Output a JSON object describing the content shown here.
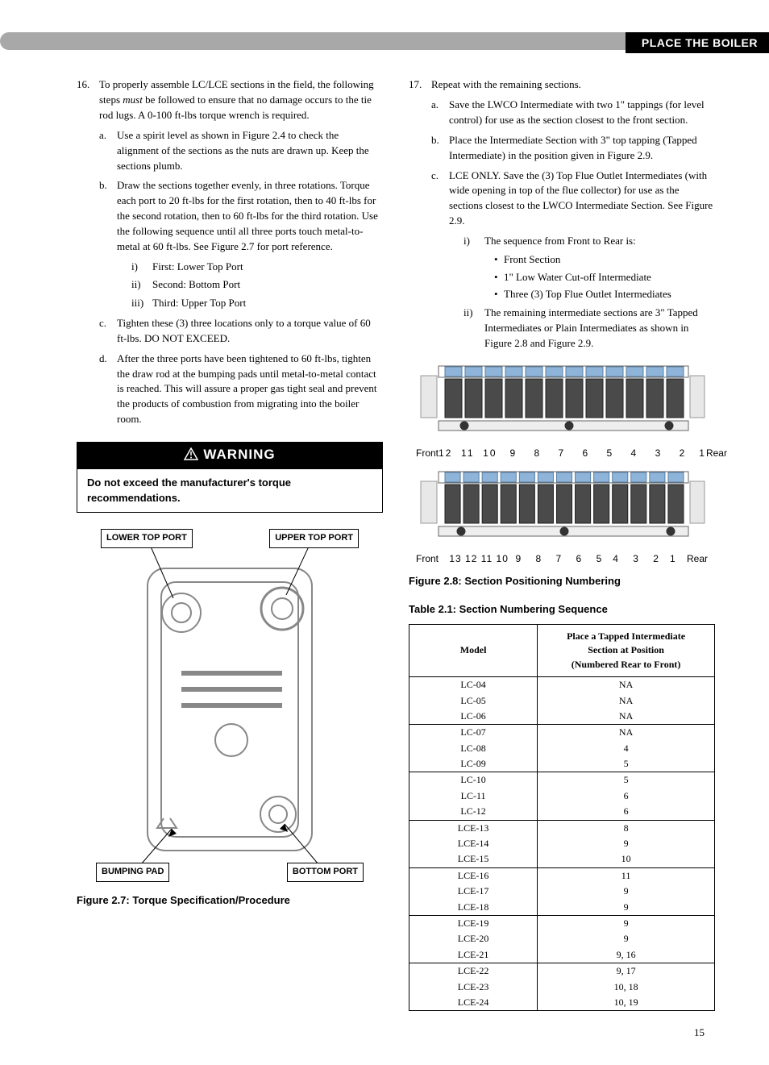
{
  "header": {
    "title": "PLACE THE BOILER"
  },
  "left": {
    "step16_num": "16.",
    "step16_text_a": "To properly assemble LC/LCE sections in the field, the following steps ",
    "step16_text_em": "must",
    "step16_text_b": " be followed to ensure that no damage occurs to the tie rod lugs. A 0-100 ft-lbs torque wrench is required.",
    "a_num": "a.",
    "a_text": "Use a spirit level as shown in Figure 2.4 to check the alignment of the sections as the nuts are drawn up. Keep the sections plumb.",
    "b_num": "b.",
    "b_text": "Draw the sections together evenly, in three rotations. Torque each port to 20 ft-lbs for the first rotation, then to 40 ft-lbs for the second rotation, then to 60 ft-lbs for the third rotation. Use the following sequence until all three ports touch metal-to-metal at 60 ft-lbs. See Figure 2.7 for port reference.",
    "b_i_num": "i)",
    "b_i": "First: Lower Top Port",
    "b_ii_num": "ii)",
    "b_ii": "Second: Bottom Port",
    "b_iii_num": "iii)",
    "b_iii": "Third: Upper Top Port",
    "c_num": "c.",
    "c_text": "Tighten these (3) three locations only to a torque value of 60 ft-lbs. DO NOT EXCEED.",
    "d_num": "d.",
    "d_text": "After the three ports have been tightened to 60 ft-lbs, tighten the draw rod at the bumping pads until metal-to-metal contact is reached. This will assure a proper gas tight seal and prevent the products of combustion from migrating into the boiler room.",
    "warning_title": "WARNING",
    "warning_body": "Do not exceed the manufacturer's torque recommendations.",
    "fig27": {
      "labels": {
        "lower_top": "LOWER TOP PORT",
        "upper_top": "UPPER TOP PORT",
        "bumping_pad": "BUMPING PAD",
        "bottom_port": "BOTTOM PORT"
      },
      "caption": "Figure 2.7: Torque Specification/Procedure"
    }
  },
  "right": {
    "step17_num": "17.",
    "step17_text": "Repeat with the remaining sections.",
    "a_num": "a.",
    "a_text": "Save the LWCO Intermediate with two 1\" tappings (for level control) for use as the section closest to the front section.",
    "b_num": "b.",
    "b_text": "Place the Intermediate Section with 3\" top tapping (Tapped Intermediate) in the position given in Figure 2.9.",
    "c_num": "c.",
    "c_text": "LCE ONLY. Save the (3) Top Flue Outlet Intermediates (with wide opening in top of the flue collector) for use as the sections closest to the LWCO Intermediate Section. See Figure 2.9.",
    "c_i_num": "i)",
    "c_i": "The sequence from Front to Rear is:",
    "c_i_b1": "Front Section",
    "c_i_b2": "1\" Low Water Cut-off Intermediate",
    "c_i_b3": "Three (3) Top Flue Outlet Intermediates",
    "c_ii_num": "ii)",
    "c_ii": "The remaining intermediate sections are 3\" Tapped Intermediates or Plain Intermediates as shown in Figure 2.8 and Figure 2.9.",
    "fig28": {
      "caption": "Figure 2.8: Section Positioning Numbering",
      "row1_front": "Front",
      "row1_rear": "Rear",
      "row1_nums": "12  11  10   9    8    7    6    5    4    3    2   1",
      "row2_front": "Front",
      "row2_rear": "Rear",
      "row2_nums": "13 12 11 10  9    8    7    6    5   4    3    2   1"
    },
    "table21": {
      "caption": "Table 2.1: Section Numbering Sequence",
      "head_model": "Model",
      "head_pos_l1": "Place a Tapped Intermediate",
      "head_pos_l2": "Section at Position",
      "head_pos_l3": "(Numbered Rear to Front)",
      "groups": [
        [
          [
            "LC-04",
            "NA"
          ],
          [
            "LC-05",
            "NA"
          ],
          [
            "LC-06",
            "NA"
          ]
        ],
        [
          [
            "LC-07",
            "NA"
          ],
          [
            "LC-08",
            "4"
          ],
          [
            "LC-09",
            "5"
          ]
        ],
        [
          [
            "LC-10",
            "5"
          ],
          [
            "LC-11",
            "6"
          ],
          [
            "LC-12",
            "6"
          ]
        ],
        [
          [
            "LCE-13",
            "8"
          ],
          [
            "LCE-14",
            "9"
          ],
          [
            "LCE-15",
            "10"
          ]
        ],
        [
          [
            "LCE-16",
            "11"
          ],
          [
            "LCE-17",
            "9"
          ],
          [
            "LCE-18",
            "9"
          ]
        ],
        [
          [
            "LCE-19",
            "9"
          ],
          [
            "LCE-20",
            "9"
          ],
          [
            "LCE-21",
            "9, 16"
          ]
        ],
        [
          [
            "LCE-22",
            "9, 17"
          ],
          [
            "LCE-23",
            "10, 18"
          ],
          [
            "LCE-24",
            "10, 19"
          ]
        ]
      ]
    }
  },
  "page_number": "15",
  "colors": {
    "header_gray": "#a8a8a8",
    "black": "#000000",
    "diagram_stroke": "#888888"
  }
}
